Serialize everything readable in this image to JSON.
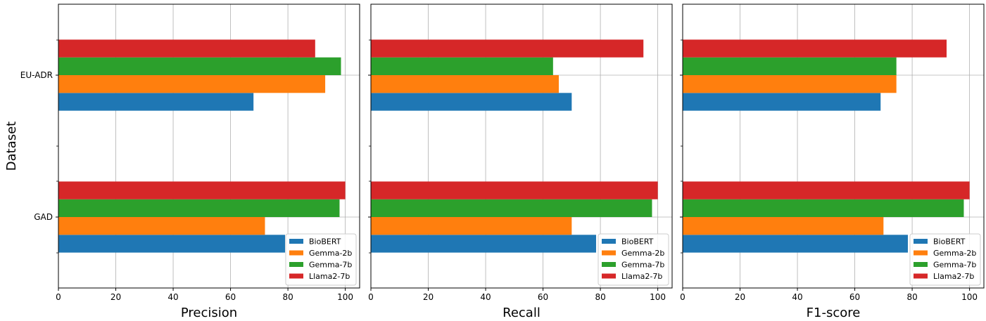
{
  "chart_data": {
    "type": "bar",
    "orientation": "horizontal",
    "ylabel": "Dataset",
    "categories": [
      "GAD",
      "EU-ADR"
    ],
    "xlim": [
      0,
      105
    ],
    "xticks": [
      0,
      20,
      40,
      60,
      80,
      100
    ],
    "grid": true,
    "legend_placement": "lower-right",
    "series_colors": [
      "#1f77b4",
      "#ff7f0e",
      "#2ca02c",
      "#d62728"
    ],
    "panels": [
      {
        "xlabel": "Precision",
        "series": [
          {
            "name": "BioBERT",
            "values": [
              79,
              68
            ]
          },
          {
            "name": "Gemma-2b",
            "values": [
              72,
              93
            ]
          },
          {
            "name": "Gemma-7b",
            "values": [
              98,
              98.5
            ]
          },
          {
            "name": "Llama2-7b",
            "values": [
              100,
              89.5
            ]
          }
        ]
      },
      {
        "xlabel": "Recall",
        "series": [
          {
            "name": "BioBERT",
            "values": [
              78.5,
              70
            ]
          },
          {
            "name": "Gemma-2b",
            "values": [
              70,
              65.5
            ]
          },
          {
            "name": "Gemma-7b",
            "values": [
              98,
              63.5
            ]
          },
          {
            "name": "Llama2-7b",
            "values": [
              100,
              95
            ]
          }
        ]
      },
      {
        "xlabel": "F1-score",
        "series": [
          {
            "name": "BioBERT",
            "values": [
              78.5,
              69
            ]
          },
          {
            "name": "Gemma-2b",
            "values": [
              70,
              74.5
            ]
          },
          {
            "name": "Gemma-7b",
            "values": [
              98,
              74.5
            ]
          },
          {
            "name": "Llama2-7b",
            "values": [
              100,
              92
            ]
          }
        ]
      }
    ]
  }
}
